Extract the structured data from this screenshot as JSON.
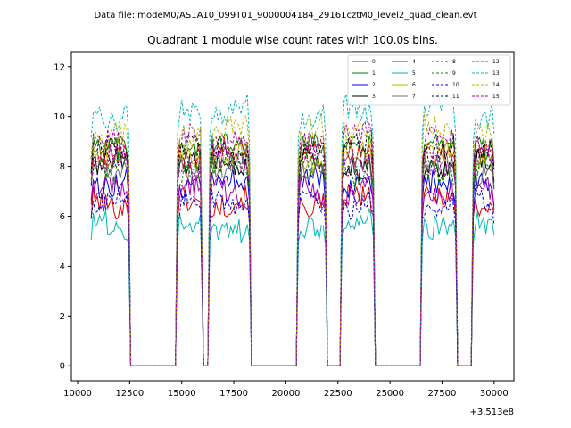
{
  "header": {
    "suptitle": "Data file: modeM0/AS1A10_099T01_9000004184_29161cztM0_level2_quad_clean.evt"
  },
  "chart_data": {
    "type": "line",
    "title": "Quadrant 1 module wise count rates with 100.0s bins.",
    "xlabel": "",
    "ylabel": "",
    "x_offset_label": "+3.513e8",
    "xlim": [
      9700,
      30950
    ],
    "ylim": [
      -0.6,
      12.6
    ],
    "xticks": [
      10000,
      12500,
      15000,
      17500,
      20000,
      22500,
      25000,
      27500,
      30000
    ],
    "xtick_labels": [
      "10000",
      "12500",
      "15000",
      "17500",
      "20000",
      "22500",
      "25000",
      "27500",
      "30000"
    ],
    "yticks": [
      0,
      2,
      4,
      6,
      8,
      10,
      12
    ],
    "ytick_labels": [
      "0",
      "2",
      "4",
      "6",
      "8",
      "10",
      "12"
    ],
    "legend_position": "top-right",
    "segments": [
      {
        "start": 10650,
        "end": 12450
      },
      {
        "start": 14800,
        "end": 15950
      },
      {
        "start": 16350,
        "end": 18250
      },
      {
        "start": 20600,
        "end": 21900
      },
      {
        "start": 22700,
        "end": 24200
      },
      {
        "start": 26550,
        "end": 28150
      },
      {
        "start": 29000,
        "end": 30000
      }
    ],
    "series": [
      {
        "name": "0",
        "color": "#e00000",
        "dash": "solid",
        "base": 6.6
      },
      {
        "name": "1",
        "color": "#008000",
        "dash": "solid",
        "base": 8.9
      },
      {
        "name": "2",
        "color": "#0000e0",
        "dash": "solid",
        "base": 7.3
      },
      {
        "name": "3",
        "color": "#000000",
        "dash": "solid",
        "base": 8.1
      },
      {
        "name": "4",
        "color": "#aa00aa",
        "dash": "solid",
        "base": 7.0
      },
      {
        "name": "5",
        "color": "#00b8b8",
        "dash": "solid",
        "base": 5.6
      },
      {
        "name": "6",
        "color": "#b8b800",
        "dash": "solid",
        "base": 8.4
      },
      {
        "name": "7",
        "color": "#707070",
        "dash": "solid",
        "base": 8.0
      },
      {
        "name": "8",
        "color": "#e00000",
        "dash": "dashed",
        "base": 8.6
      },
      {
        "name": "9",
        "color": "#008000",
        "dash": "dashed",
        "base": 7.9
      },
      {
        "name": "10",
        "color": "#0000e0",
        "dash": "dashed",
        "base": 6.5
      },
      {
        "name": "11",
        "color": "#000000",
        "dash": "dashed",
        "base": 8.7
      },
      {
        "name": "12",
        "color": "#aa00aa",
        "dash": "dashed",
        "base": 9.1
      },
      {
        "name": "13",
        "color": "#00b8b8",
        "dash": "dashed",
        "base": 10.2
      },
      {
        "name": "14",
        "color": "#b8b800",
        "dash": "dashed",
        "base": 9.4
      },
      {
        "name": "15",
        "color": "#aa00aa",
        "dash": "dashed",
        "base": 8.2
      }
    ]
  }
}
